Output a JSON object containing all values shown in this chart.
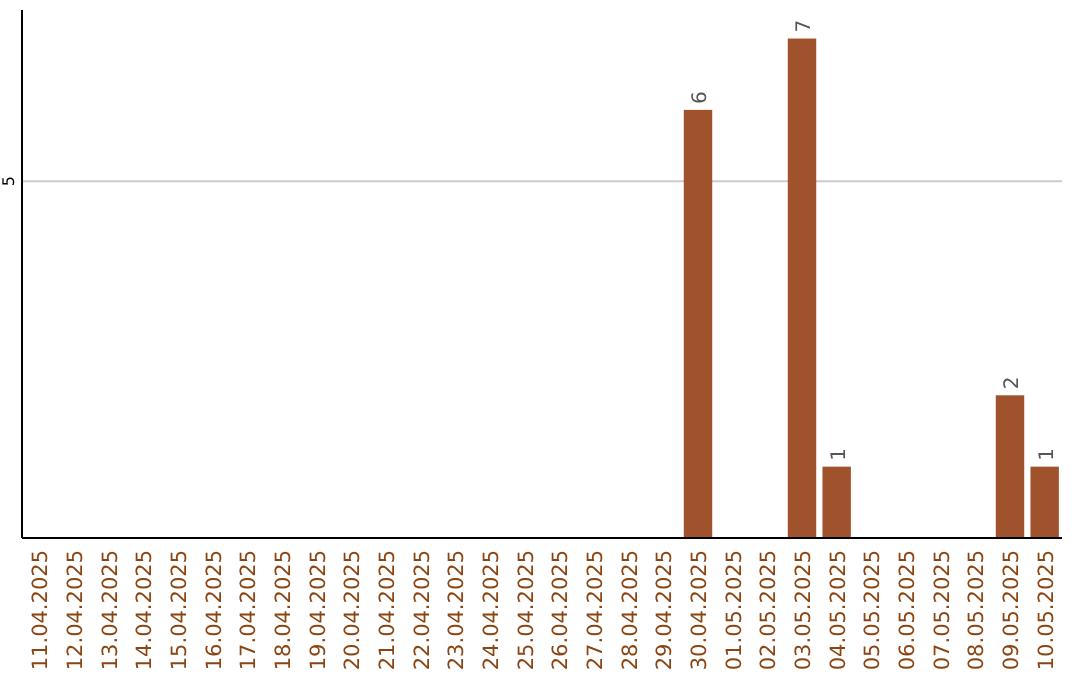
{
  "chart_data": {
    "type": "bar",
    "categories": [
      "11.04.2025",
      "12.04.2025",
      "13.04.2025",
      "14.04.2025",
      "15.04.2025",
      "16.04.2025",
      "17.04.2025",
      "18.04.2025",
      "19.04.2025",
      "20.04.2025",
      "21.04.2025",
      "22.04.2025",
      "23.04.2025",
      "24.04.2025",
      "25.04.2025",
      "26.04.2025",
      "27.04.2025",
      "28.04.2025",
      "29.04.2025",
      "30.04.2025",
      "01.05.2025",
      "02.05.2025",
      "03.05.2025",
      "04.05.2025",
      "05.05.2025",
      "06.05.2025",
      "07.05.2025",
      "08.05.2025",
      "09.05.2025",
      "10.05.2025"
    ],
    "values": [
      null,
      null,
      null,
      null,
      null,
      null,
      null,
      null,
      null,
      null,
      null,
      null,
      null,
      null,
      null,
      null,
      null,
      null,
      null,
      6,
      null,
      null,
      7,
      1,
      null,
      null,
      null,
      null,
      2,
      1
    ],
    "data_labels": true,
    "color": "#a0522d",
    "ylim": [
      0,
      7.4
    ],
    "yticks": [
      5
    ],
    "grid": "y"
  }
}
